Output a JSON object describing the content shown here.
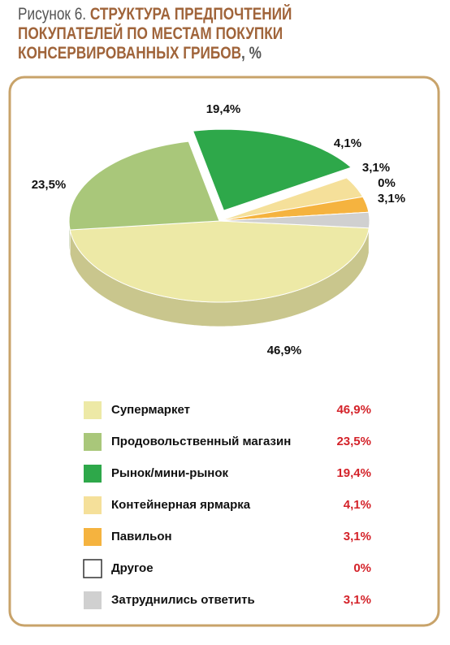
{
  "chart_data": {
    "type": "pie",
    "figure_label": "Рисунок 6.",
    "title": "СТРУКТУРА ПРЕДПОЧТЕНИЙ ПОКУПАТЕЛЕЙ ПО МЕСТАМ ПОКУПКИ КОНСЕРВИРОВАННЫХ ГРИБОВ",
    "title_suffix": ", %",
    "categories": [
      "Супермаркет",
      "Продовольственный магазин",
      "Рынок/мини-рынок",
      "Контейнерная ярмарка",
      "Павильон",
      "Другое",
      "Затруднились ответить"
    ],
    "values": [
      46.9,
      23.5,
      19.4,
      4.1,
      3.1,
      0,
      3.1
    ],
    "value_labels": [
      "46,9%",
      "23,5%",
      "19,4%",
      "4,1%",
      "3,1%",
      "0%",
      "3,1%"
    ],
    "colors": [
      "#ede9a6",
      "#a9c77a",
      "#2ea84a",
      "#f5e09a",
      "#f5b33f",
      "#ffffff",
      "#d0d0d0"
    ]
  }
}
